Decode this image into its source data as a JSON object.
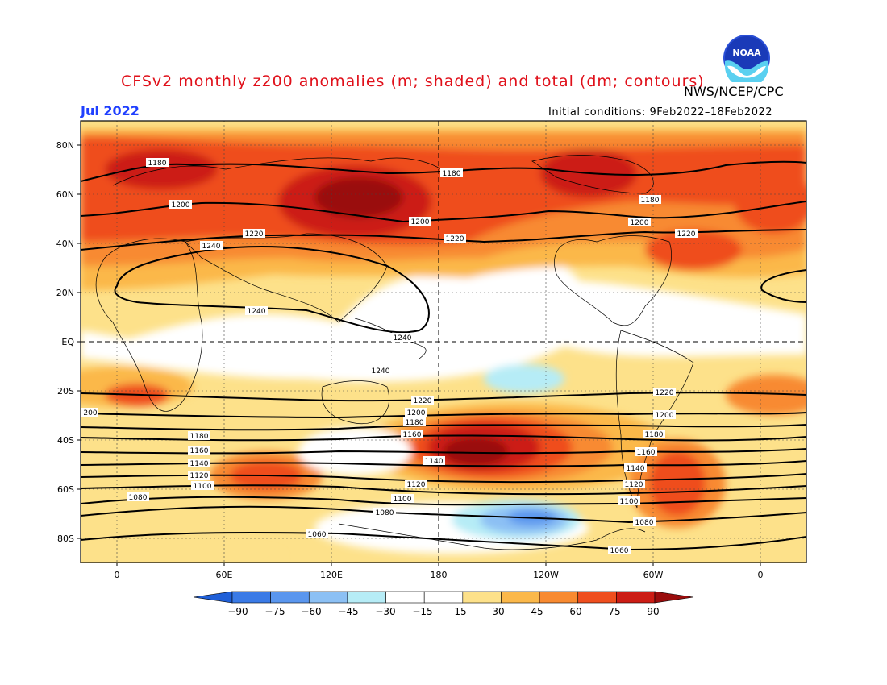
{
  "header": {
    "title": "CFSv2 monthly z200 anomalies (m; shaded) and total (dm; contours)",
    "agency": "NWS/NCEP/CPC",
    "month": "Jul 2022",
    "initial_conditions": "Initial conditions: 9Feb2022–18Feb2022"
  },
  "logo": {
    "icon": "noaa-logo-icon",
    "text": "NOAA"
  },
  "map": {
    "lat_labels": [
      "80N",
      "60N",
      "40N",
      "20N",
      "EQ",
      "20S",
      "40S",
      "60S",
      "80S"
    ],
    "lon_labels": [
      "0",
      "60E",
      "120E",
      "180",
      "120W",
      "60W",
      "0"
    ],
    "contour_labels": [
      {
        "text": "1180"
      },
      {
        "text": "1180"
      },
      {
        "text": "1180"
      },
      {
        "text": "1200"
      },
      {
        "text": "1200"
      },
      {
        "text": "1200"
      },
      {
        "text": "1220"
      },
      {
        "text": "1220"
      },
      {
        "text": "1220"
      },
      {
        "text": "1240"
      },
      {
        "text": "1240"
      },
      {
        "text": "1240"
      },
      {
        "text": "1240"
      },
      {
        "text": "1220"
      },
      {
        "text": "1220"
      },
      {
        "text": "1200"
      },
      {
        "text": "1200"
      },
      {
        "text": "200"
      },
      {
        "text": "1180"
      },
      {
        "text": "1180"
      },
      {
        "text": "1180"
      },
      {
        "text": "1160"
      },
      {
        "text": "1160"
      },
      {
        "text": "1160"
      },
      {
        "text": "1140"
      },
      {
        "text": "1140"
      },
      {
        "text": "1140"
      },
      {
        "text": "1120"
      },
      {
        "text": "1120"
      },
      {
        "text": "1120"
      },
      {
        "text": "1100"
      },
      {
        "text": "1100"
      },
      {
        "text": "1100"
      },
      {
        "text": "1080"
      },
      {
        "text": "1080"
      },
      {
        "text": "1080"
      },
      {
        "text": "1060"
      },
      {
        "text": "1060"
      }
    ]
  },
  "colorbar": {
    "labels": [
      "−90",
      "−75",
      "−60",
      "−45",
      "−30",
      "−15",
      "15",
      "30",
      "45",
      "60",
      "75",
      "90"
    ],
    "colors": [
      "#1f5fd8",
      "#3a7ae6",
      "#5a96ee",
      "#8cc0f4",
      "#b6ecf6",
      "#ffffff",
      "#ffffff",
      "#fde18a",
      "#fbb84a",
      "#f88a30",
      "#ef4e1e",
      "#cc1c14",
      "#9a0c0c"
    ]
  }
}
